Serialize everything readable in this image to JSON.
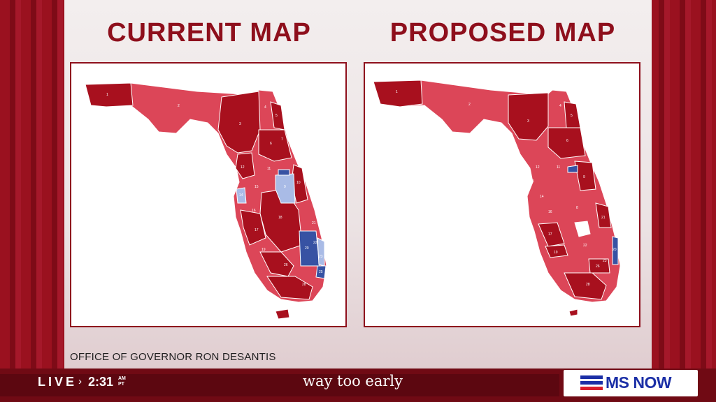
{
  "titles": {
    "current": "CURRENT MAP",
    "proposed": "PROPOSED MAP"
  },
  "source": "OFFICE OF GOVERNOR RON DESANTIS",
  "ticker": {
    "live": "LIVE",
    "time": "2:31",
    "am": "AM",
    "pt": "PT",
    "show": "way too early",
    "network": "MS NOW"
  },
  "colors": {
    "accent": "#8e0f1c",
    "republican": "#a8101e",
    "lean_republican": "#dc4658",
    "democrat": "#3752a3",
    "lean_democrat": "#a9bbe6",
    "network_blue": "#1b2fa6"
  },
  "current_map": {
    "district_labels": [
      "1",
      "2",
      "3",
      "4",
      "5",
      "6",
      "7",
      "9",
      "10",
      "11",
      "12",
      "13",
      "14",
      "15",
      "16",
      "17",
      "18",
      "19",
      "20",
      "21",
      "22",
      "23",
      "25",
      "26",
      "28"
    ]
  },
  "proposed_map": {
    "district_labels": [
      "1",
      "2",
      "3",
      "4",
      "5",
      "6",
      "8",
      "9",
      "11",
      "12",
      "13",
      "14",
      "16",
      "17",
      "19",
      "20",
      "21",
      "22",
      "23",
      "26",
      "28"
    ]
  }
}
